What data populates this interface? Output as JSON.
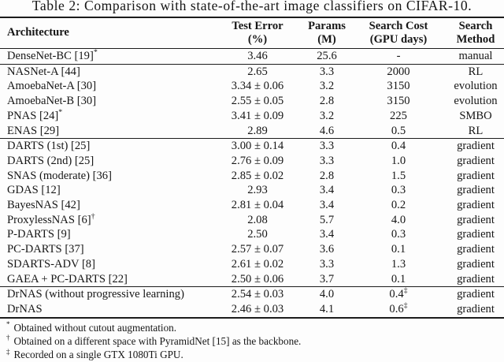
{
  "title": "Table 2: Comparison with state-of-the-art image classifiers on CIFAR-10.",
  "table": {
    "headers": [
      {
        "line1": "Architecture",
        "line2": ""
      },
      {
        "line1": "Test Error",
        "line2": "(%)"
      },
      {
        "line1": "Params",
        "line2": "(M)"
      },
      {
        "line1": "Search Cost",
        "line2": "(GPU days)"
      },
      {
        "line1": "Search",
        "line2": "Method"
      }
    ],
    "groups": [
      {
        "rows": [
          {
            "arch": "DenseNet-BC [19]",
            "arch_sup": "*",
            "test_error": "3.46",
            "params": "25.6",
            "search_cost": "-",
            "cost_sup": "",
            "method": "manual"
          }
        ]
      },
      {
        "rows": [
          {
            "arch": "NASNet-A [44]",
            "arch_sup": "",
            "test_error": "2.65",
            "params": "3.3",
            "search_cost": "2000",
            "cost_sup": "",
            "method": "RL"
          },
          {
            "arch": "AmoebaNet-A [30]",
            "arch_sup": "",
            "test_error": "3.34 ± 0.06",
            "params": "3.2",
            "search_cost": "3150",
            "cost_sup": "",
            "method": "evolution"
          },
          {
            "arch": "AmoebaNet-B [30]",
            "arch_sup": "",
            "test_error": "2.55 ± 0.05",
            "params": "2.8",
            "search_cost": "3150",
            "cost_sup": "",
            "method": "evolution"
          },
          {
            "arch": "PNAS [24]",
            "arch_sup": "*",
            "test_error": "3.41 ± 0.09",
            "params": "3.2",
            "search_cost": "225",
            "cost_sup": "",
            "method": "SMBO"
          },
          {
            "arch": "ENAS [29]",
            "arch_sup": "",
            "test_error": "2.89",
            "params": "4.6",
            "search_cost": "0.5",
            "cost_sup": "",
            "method": "RL"
          }
        ]
      },
      {
        "rows": [
          {
            "arch": "DARTS (1st) [25]",
            "arch_sup": "",
            "test_error": "3.00 ± 0.14",
            "params": "3.3",
            "search_cost": "0.4",
            "cost_sup": "",
            "method": "gradient"
          },
          {
            "arch": "DARTS (2nd) [25]",
            "arch_sup": "",
            "test_error": "2.76 ± 0.09",
            "params": "3.3",
            "search_cost": "1.0",
            "cost_sup": "",
            "method": "gradient"
          },
          {
            "arch": "SNAS (moderate) [36]",
            "arch_sup": "",
            "test_error": "2.85 ± 0.02",
            "params": "2.8",
            "search_cost": "1.5",
            "cost_sup": "",
            "method": "gradient"
          },
          {
            "arch": "GDAS [12]",
            "arch_sup": "",
            "test_error": "2.93",
            "params": "3.4",
            "search_cost": "0.3",
            "cost_sup": "",
            "method": "gradient"
          },
          {
            "arch": "BayesNAS [42]",
            "arch_sup": "",
            "test_error": "2.81 ± 0.04",
            "params": "3.4",
            "search_cost": "0.2",
            "cost_sup": "",
            "method": "gradient"
          },
          {
            "arch": "ProxylessNAS [6]",
            "arch_sup": "†",
            "test_error": "2.08",
            "params": "5.7",
            "search_cost": "4.0",
            "cost_sup": "",
            "method": "gradient"
          },
          {
            "arch": "P-DARTS [9]",
            "arch_sup": "",
            "test_error": "2.50",
            "params": "3.4",
            "search_cost": "0.3",
            "cost_sup": "",
            "method": "gradient"
          },
          {
            "arch": "PC-DARTS [37]",
            "arch_sup": "",
            "test_error": "2.57 ± 0.07",
            "params": "3.6",
            "search_cost": "0.1",
            "cost_sup": "",
            "method": "gradient"
          },
          {
            "arch": "SDARTS-ADV [8]",
            "arch_sup": "",
            "test_error": "2.61 ± 0.02",
            "params": "3.3",
            "search_cost": "1.3",
            "cost_sup": "",
            "method": "gradient"
          },
          {
            "arch": "GAEA + PC-DARTS [22]",
            "arch_sup": "",
            "test_error": "2.50 ± 0.06",
            "params": "3.7",
            "search_cost": "0.1",
            "cost_sup": "",
            "method": "gradient"
          }
        ]
      },
      {
        "rows": [
          {
            "arch": "DrNAS (without progressive learning)",
            "arch_sup": "",
            "test_error": "2.54 ± 0.03",
            "params": "4.0",
            "search_cost": "0.4",
            "cost_sup": "‡",
            "method": "gradient"
          },
          {
            "arch": "DrNAS",
            "arch_sup": "",
            "test_error": "2.46 ± 0.03",
            "params": "4.1",
            "search_cost": "0.6",
            "cost_sup": "‡",
            "method": "gradient"
          }
        ]
      }
    ]
  },
  "footnotes": [
    {
      "marker": "*",
      "text": "Obtained without cutout augmentation."
    },
    {
      "marker": "†",
      "text": "Obtained on a different space with PyramidNet [15] as the backbone."
    },
    {
      "marker": "‡",
      "text": "Recorded on a single GTX 1080Ti GPU."
    }
  ],
  "colors": {
    "text": "#161616",
    "background": "#fdfdfd",
    "rule": "#1c1c1c"
  }
}
